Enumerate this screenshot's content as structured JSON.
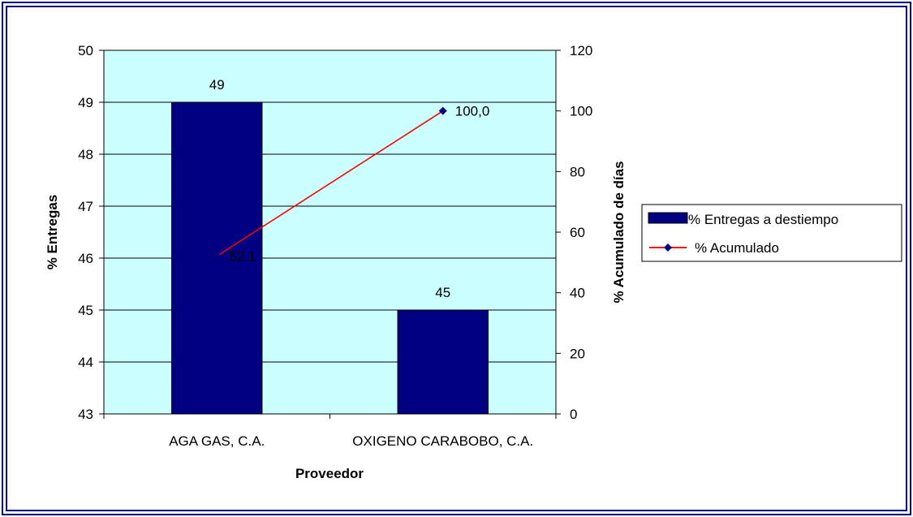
{
  "chart_data": {
    "type": "bar",
    "categories": [
      "AGA GAS, C.A.",
      "OXIGENO CARABOBO, C.A."
    ],
    "xlabel": "Proveedor",
    "series": [
      {
        "name": "% Entregas a destiempo",
        "type": "bar",
        "axis": "left",
        "values": [
          49,
          45
        ],
        "labels": [
          "49",
          "45"
        ]
      },
      {
        "name": "% Acumulado",
        "type": "line",
        "axis": "right",
        "values": [
          52.1,
          100.0
        ],
        "labels": [
          "52,1",
          "100,0"
        ]
      }
    ],
    "y_left": {
      "label": "% Entregas",
      "lim": [
        43,
        50
      ],
      "ticks": [
        43,
        44,
        45,
        46,
        47,
        48,
        49,
        50
      ],
      "tick_labels": [
        "43",
        "44",
        "45",
        "46",
        "47",
        "48",
        "49",
        "50"
      ]
    },
    "y_right": {
      "label": "% Acumulado de días",
      "lim": [
        0,
        120
      ],
      "ticks": [
        0,
        20,
        40,
        60,
        80,
        100,
        120
      ],
      "tick_labels": [
        "0",
        "20",
        "40",
        "60",
        "80",
        "100",
        "120"
      ]
    },
    "grid": true,
    "legend_position": "right",
    "colors": {
      "plot_background": "#ccffff",
      "bar": "#000080",
      "line": "#ff0000",
      "marker": "#000080",
      "frame": "#000080"
    }
  }
}
